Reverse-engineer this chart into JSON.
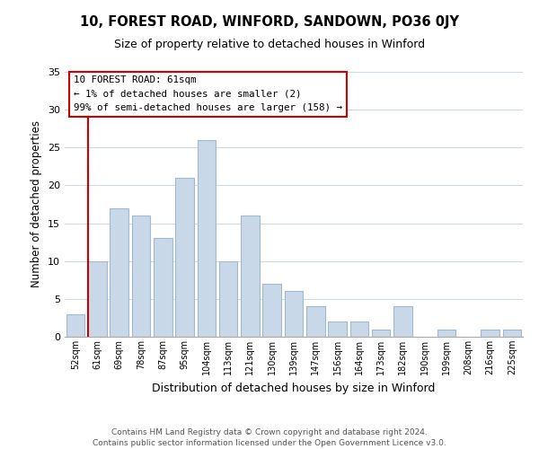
{
  "title": "10, FOREST ROAD, WINFORD, SANDOWN, PO36 0JY",
  "subtitle": "Size of property relative to detached houses in Winford",
  "xlabel": "Distribution of detached houses by size in Winford",
  "ylabel": "Number of detached properties",
  "bar_labels": [
    "52sqm",
    "61sqm",
    "69sqm",
    "78sqm",
    "87sqm",
    "95sqm",
    "104sqm",
    "113sqm",
    "121sqm",
    "130sqm",
    "139sqm",
    "147sqm",
    "156sqm",
    "164sqm",
    "173sqm",
    "182sqm",
    "190sqm",
    "199sqm",
    "208sqm",
    "216sqm",
    "225sqm"
  ],
  "bar_values": [
    3,
    10,
    17,
    16,
    13,
    21,
    26,
    10,
    16,
    7,
    6,
    4,
    2,
    2,
    1,
    4,
    0,
    1,
    0,
    1,
    1
  ],
  "bar_color": "#c8d8e8",
  "bar_edge_color": "#a0b8d0",
  "vline_color": "#cc0000",
  "annotation_title": "10 FOREST ROAD: 61sqm",
  "annotation_line1": "← 1% of detached houses are smaller (2)",
  "annotation_line2": "99% of semi-detached houses are larger (158) →",
  "annotation_box_color": "#ffffff",
  "annotation_box_edge": "#cc0000",
  "ylim": [
    0,
    35
  ],
  "yticks": [
    0,
    5,
    10,
    15,
    20,
    25,
    30,
    35
  ],
  "footer1": "Contains HM Land Registry data © Crown copyright and database right 2024.",
  "footer2": "Contains public sector information licensed under the Open Government Licence v3.0."
}
